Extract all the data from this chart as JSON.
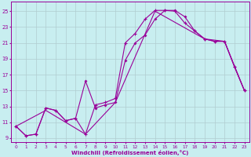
{
  "xlabel": "Windchill (Refroidissement éolien,°C)",
  "background_color": "#c8eef0",
  "grid_color": "#b0ccd0",
  "line_color": "#990099",
  "x_ticks": [
    0,
    1,
    2,
    3,
    4,
    5,
    6,
    7,
    8,
    9,
    10,
    11,
    12,
    13,
    14,
    15,
    16,
    17,
    18,
    19,
    20,
    21,
    22,
    23
  ],
  "y_ticks": [
    9,
    11,
    13,
    15,
    17,
    19,
    21,
    23,
    25
  ],
  "xlim": [
    -0.5,
    23.5
  ],
  "ylim": [
    8.5,
    26.2
  ],
  "line1_x": [
    0,
    1,
    2,
    3,
    4,
    5,
    6,
    7,
    8,
    9,
    10,
    11,
    12,
    13,
    14,
    15,
    16,
    17,
    18,
    19,
    20,
    21,
    22,
    23
  ],
  "line1_y": [
    10.5,
    9.3,
    9.5,
    12.8,
    12.5,
    11.2,
    11.5,
    9.5,
    13.2,
    13.5,
    14.0,
    21.0,
    22.2,
    24.0,
    25.1,
    25.1,
    25.0,
    23.5,
    22.5,
    21.5,
    21.2,
    21.2,
    18.0,
    15.0
  ],
  "line2_x": [
    0,
    1,
    2,
    3,
    4,
    5,
    6,
    7,
    8,
    9,
    10,
    11,
    12,
    13,
    14,
    15,
    16,
    17,
    18,
    19,
    20,
    21,
    22,
    23
  ],
  "line2_y": [
    10.5,
    9.3,
    9.5,
    12.8,
    12.5,
    11.2,
    11.5,
    16.2,
    12.8,
    13.2,
    13.5,
    18.8,
    21.0,
    22.0,
    24.0,
    25.1,
    25.1,
    24.3,
    22.5,
    21.5,
    21.2,
    21.2,
    18.0,
    15.0
  ],
  "line3_x": [
    0,
    3,
    7,
    10,
    14,
    19,
    21,
    23
  ],
  "line3_y": [
    10.5,
    12.5,
    9.5,
    13.5,
    25.0,
    21.5,
    21.2,
    15.0
  ]
}
